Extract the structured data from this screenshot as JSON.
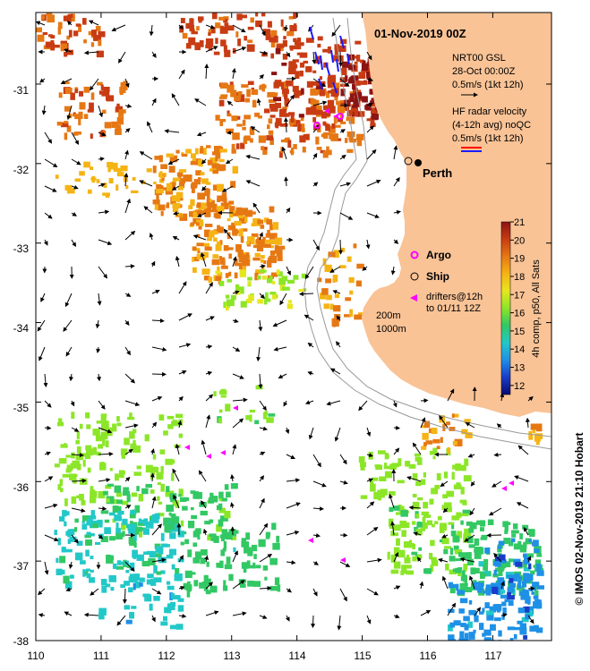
{
  "map": {
    "date_title": "01-Nov-2019 00Z",
    "city": "Perth",
    "credit": "© IMOS 02-Nov-2019 21:10 Hobart",
    "x_ticks": [
      "110",
      "111",
      "112",
      "113",
      "114",
      "115",
      "116",
      "117"
    ],
    "y_ticks": [
      "-31",
      "-32",
      "-33",
      "-34",
      "-35",
      "-36",
      "-37",
      "-38"
    ],
    "lon_range": [
      110,
      117.9
    ],
    "lat_range": [
      -38,
      -30.1
    ],
    "land_color": "#f9c396",
    "contour_color": "#999999",
    "contour_labels": [
      "200m",
      "1000m"
    ]
  },
  "legend": {
    "gsl_title": "NRT00 GSL",
    "gsl_date": "28-Oct 00:00Z",
    "gsl_scale": "0.5m/s (1kt 12h)",
    "hf_line1": "HF radar velocity",
    "hf_line2": "(4-12h avg) noQC",
    "hf_scale": "0.5m/s (1kt 12h)",
    "argo_label": "Argo",
    "ship_label": "Ship",
    "drifters_line1": "drifters@12h",
    "drifters_line2": "to 01/11 12Z",
    "argo_color": "#ff00ff",
    "drifter_color": "#ff00ff"
  },
  "colorbar": {
    "label": "4h comp, p50, All Sats",
    "ticks": [
      "12",
      "13",
      "14",
      "15",
      "16",
      "17",
      "18",
      "19",
      "20",
      "21"
    ],
    "min": 11.5,
    "max": 21,
    "colors": [
      "#0a0a6e",
      "#1a3cc8",
      "#1e90e6",
      "#22c8c8",
      "#32c864",
      "#8ce628",
      "#e6e61e",
      "#f5b414",
      "#e67814",
      "#c83c14",
      "#8c1414"
    ]
  }
}
